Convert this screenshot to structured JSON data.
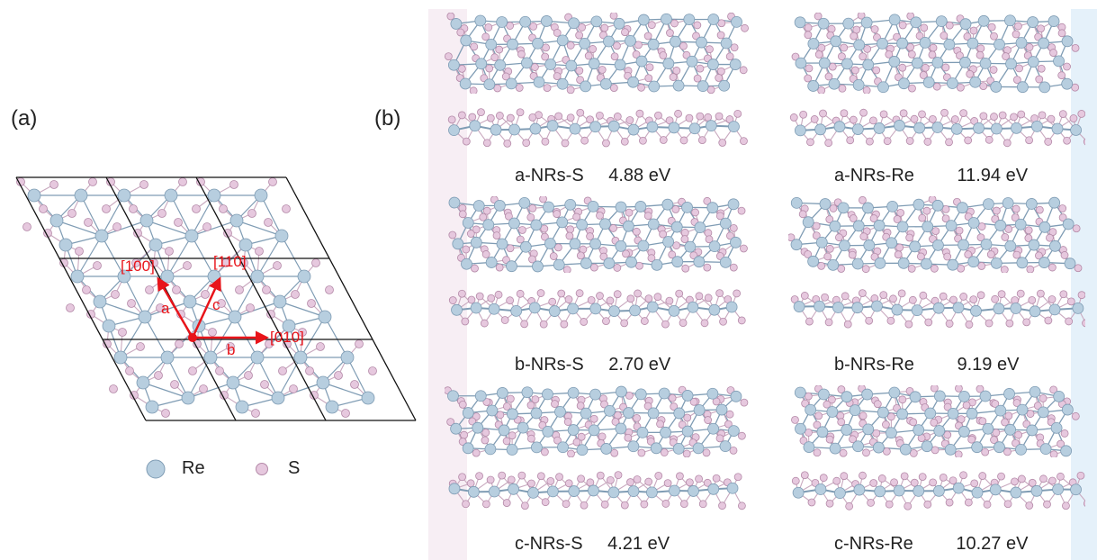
{
  "panel_a": {
    "label": "(a)",
    "directions": [
      "[100]",
      "[110]",
      "[010]"
    ],
    "vectors": [
      "a",
      "c",
      "b"
    ],
    "legend": [
      "Re",
      "S"
    ]
  },
  "panel_b": {
    "label": "(b)",
    "captions": [
      {
        "name": "a-NRs-S",
        "energy": "4.88 eV"
      },
      {
        "name": "a-NRs-Re",
        "energy": "11.94 eV"
      },
      {
        "name": "b-NRs-S",
        "energy": "2.70 eV"
      },
      {
        "name": "b-NRs-Re",
        "energy": "9.19 eV"
      },
      {
        "name": "c-NRs-S",
        "energy": "4.21 eV"
      },
      {
        "name": "c-NRs-Re",
        "energy": "10.27 eV"
      }
    ]
  },
  "colors": {
    "re_atom": "#b7cedf",
    "re_stroke": "#7f9cb4",
    "s_atom": "#e6c8de",
    "s_stroke": "#b48aa8",
    "bond": "#c9a9bf",
    "cell": "#111111",
    "vector": "#e8141a"
  }
}
